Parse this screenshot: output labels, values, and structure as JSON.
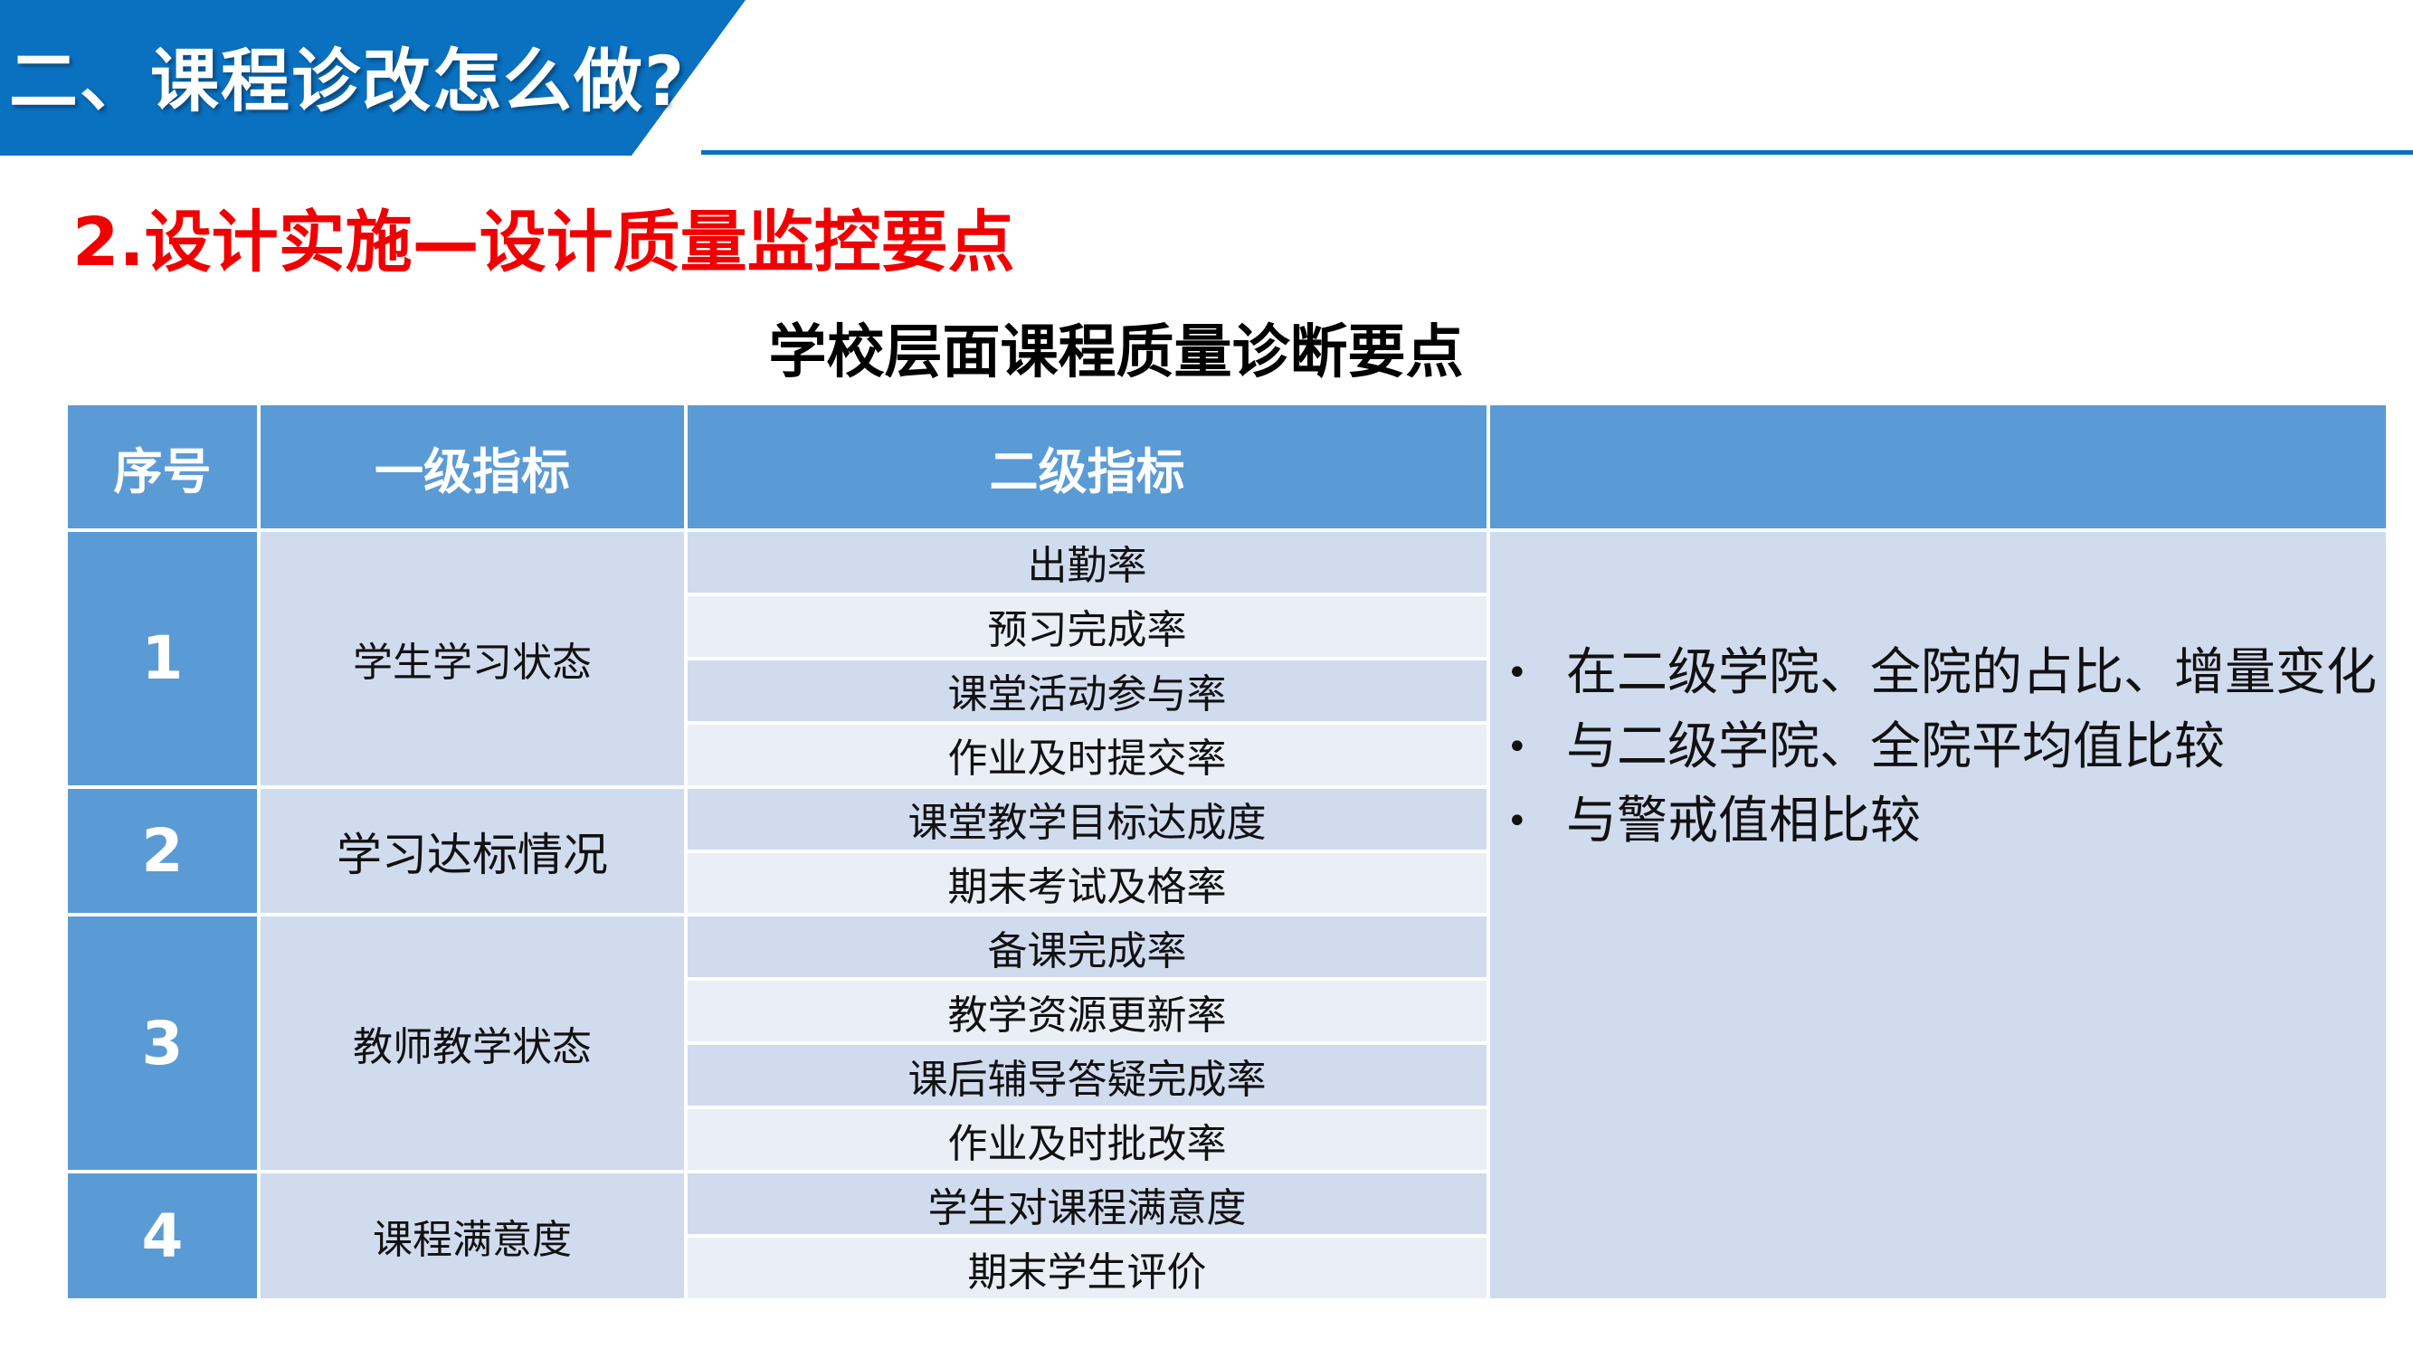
{
  "header": {
    "title": "二、课程诊改怎么做?",
    "subtitle": "2.设计实施—设计质量监控要点"
  },
  "table": {
    "title": "学校层面课程质量诊断要点",
    "columns": [
      "序号",
      "一级指标",
      "二级指标",
      ""
    ],
    "groups": [
      {
        "no": "1",
        "level1": "学生学习状态",
        "level2": [
          "出勤率",
          "预习完成率",
          "课堂活动参与率",
          "作业及时提交率"
        ]
      },
      {
        "no": "2",
        "level1": "学习达标情况",
        "level2": [
          "课堂教学目标达成度",
          "期末考试及格率"
        ]
      },
      {
        "no": "3",
        "level1": "教师教学状态",
        "level2": [
          "备课完成率",
          "教学资源更新率",
          "课后辅导答疑完成率",
          "作业及时批改率"
        ]
      },
      {
        "no": "4",
        "level1": "课程满意度",
        "level2": [
          "学生对课程满意度",
          "期末学生评价"
        ]
      }
    ],
    "notes": [
      "在二级学院、全院的占比、增量变化",
      "与二级学院、全院平均值比较",
      "与警戒值相比较"
    ]
  },
  "colors": {
    "banner": "#0A70C0",
    "subtitle": "#F00000",
    "header_fill": "#5B9BD5",
    "cell_dark": "#D0DBEE",
    "cell_light": "#E9EEF7"
  }
}
